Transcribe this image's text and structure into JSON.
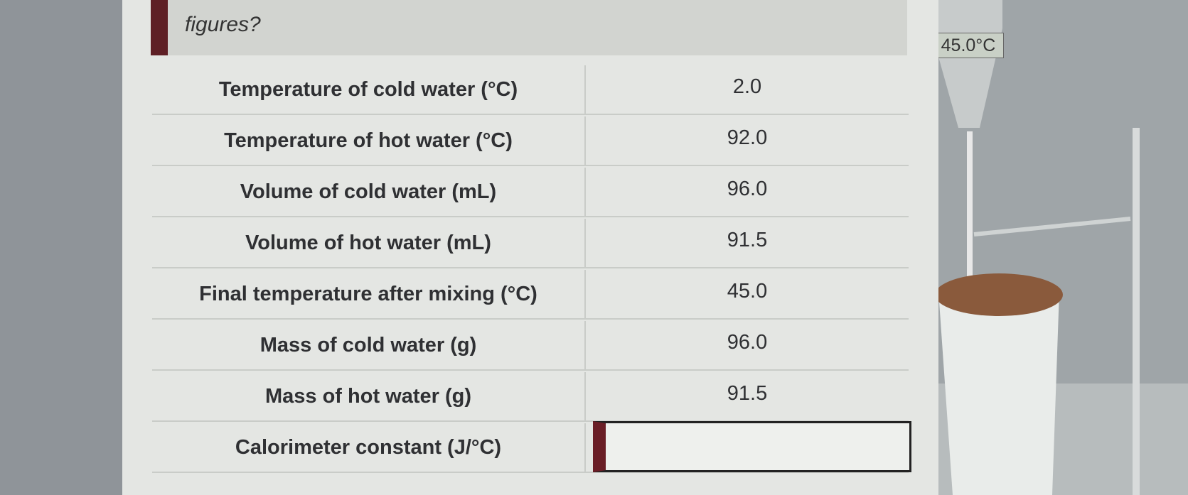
{
  "header": {
    "question": "figures?"
  },
  "thermometer": {
    "reading": "45.0°C"
  },
  "table": {
    "rows": [
      {
        "label": "Temperature of cold water (°C)",
        "value": "2.0"
      },
      {
        "label": "Temperature of hot water (°C)",
        "value": "92.0"
      },
      {
        "label": "Volume of cold water (mL)",
        "value": "96.0"
      },
      {
        "label": "Volume of hot water (mL)",
        "value": "91.5"
      },
      {
        "label": "Final temperature after mixing (°C)",
        "value": "45.0"
      },
      {
        "label": "Mass of cold water (g)",
        "value": "96.0"
      },
      {
        "label": "Mass of hot water (g)",
        "value": "91.5"
      },
      {
        "label": "Calorimeter constant (J/°C)"
      }
    ]
  }
}
